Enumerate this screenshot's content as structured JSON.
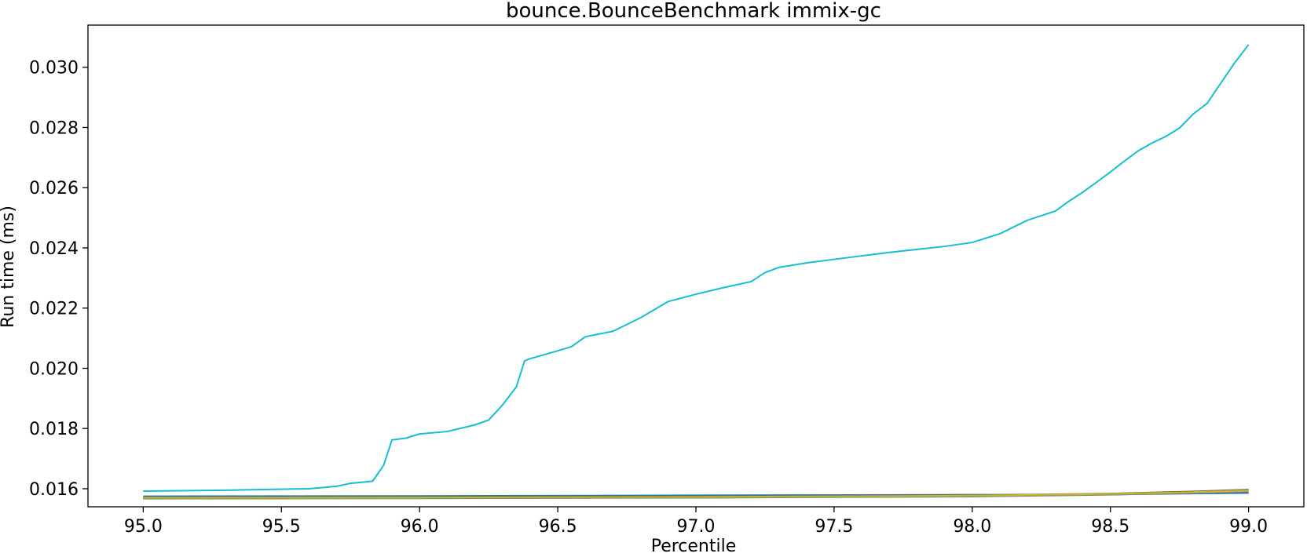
{
  "chart_data": {
    "type": "line",
    "title": "bounce.BounceBenchmark immix-gc",
    "xlabel": "Percentile",
    "ylabel": "Run time (ms)",
    "xlim": [
      94.8,
      99.2
    ],
    "ylim": [
      0.0154,
      0.0314
    ],
    "xticks": [
      95.0,
      95.5,
      96.0,
      96.5,
      97.0,
      97.5,
      98.0,
      98.5,
      99.0
    ],
    "xtick_labels": [
      "95.0",
      "95.5",
      "96.0",
      "96.5",
      "97.0",
      "97.5",
      "98.0",
      "98.5",
      "99.0"
    ],
    "yticks": [
      0.016,
      0.018,
      0.02,
      0.022,
      0.024,
      0.026,
      0.028,
      0.03
    ],
    "ytick_labels": [
      "0.016",
      "0.018",
      "0.020",
      "0.022",
      "0.024",
      "0.026",
      "0.028",
      "0.030"
    ],
    "grid": false,
    "series": [
      {
        "color": "#1f77b4",
        "x": [
          95.0,
          96.0,
          97.0,
          98.0,
          98.5,
          98.8,
          99.0
        ],
        "y": [
          0.01575,
          0.01576,
          0.01578,
          0.0158,
          0.01581,
          0.01584,
          0.01586
        ]
      },
      {
        "color": "#ff7f0e",
        "x": [
          95.0,
          96.0,
          97.0,
          98.0,
          98.5,
          98.8,
          99.0
        ],
        "y": [
          0.01568,
          0.01569,
          0.01571,
          0.01575,
          0.01582,
          0.01588,
          0.01594
        ]
      },
      {
        "color": "#2ca02c",
        "x": [
          95.0,
          96.0,
          97.0,
          98.0,
          98.5,
          98.8,
          99.0
        ],
        "y": [
          0.01567,
          0.01568,
          0.0157,
          0.01574,
          0.0158,
          0.01586,
          0.01591
        ]
      },
      {
        "color": "#d62728",
        "x": [
          95.0,
          96.0,
          97.0,
          98.0,
          98.5,
          98.8,
          99.0
        ],
        "y": [
          0.0157,
          0.01571,
          0.01573,
          0.01577,
          0.01583,
          0.0159,
          0.01596
        ]
      },
      {
        "color": "#9467bd",
        "x": [
          95.0,
          96.0,
          97.0,
          98.0,
          98.5,
          98.8,
          99.0
        ],
        "y": [
          0.01569,
          0.0157,
          0.01572,
          0.01576,
          0.01582,
          0.01588,
          0.01593
        ]
      },
      {
        "color": "#8c564b",
        "x": [
          95.0,
          96.0,
          97.0,
          98.0,
          98.5,
          98.8,
          99.0
        ],
        "y": [
          0.01571,
          0.01572,
          0.01574,
          0.01578,
          0.01584,
          0.01591,
          0.01597
        ]
      },
      {
        "color": "#e377c2",
        "x": [
          95.0,
          96.0,
          97.0,
          98.0,
          98.5,
          98.8,
          99.0
        ],
        "y": [
          0.01568,
          0.01569,
          0.01571,
          0.01575,
          0.01581,
          0.01587,
          0.01592
        ]
      },
      {
        "color": "#7f7f7f",
        "x": [
          95.0,
          96.0,
          97.0,
          98.0,
          98.5,
          98.8,
          99.0
        ],
        "y": [
          0.01569,
          0.0157,
          0.01572,
          0.01576,
          0.01582,
          0.01589,
          0.01595
        ]
      },
      {
        "color": "#bcbd22",
        "x": [
          95.0,
          96.0,
          97.0,
          98.0,
          98.5,
          98.8,
          99.0
        ],
        "y": [
          0.0157,
          0.01571,
          0.01573,
          0.01577,
          0.01583,
          0.01589,
          0.01594
        ]
      },
      {
        "color": "#17becf",
        "x": [
          95.0,
          95.3,
          95.6,
          95.7,
          95.75,
          95.83,
          95.87,
          95.9,
          95.95,
          96.0,
          96.1,
          96.2,
          96.25,
          96.3,
          96.35,
          96.38,
          96.4,
          96.5,
          96.55,
          96.6,
          96.7,
          96.8,
          96.9,
          97.0,
          97.1,
          97.2,
          97.25,
          97.3,
          97.4,
          97.5,
          97.7,
          97.9,
          98.0,
          98.1,
          98.2,
          98.3,
          98.35,
          98.4,
          98.45,
          98.5,
          98.55,
          98.6,
          98.65,
          98.7,
          98.75,
          98.8,
          98.85,
          98.9,
          98.95,
          99.0
        ],
        "y": [
          0.01592,
          0.01595,
          0.016,
          0.01608,
          0.01618,
          0.01625,
          0.01678,
          0.01762,
          0.01768,
          0.01782,
          0.0179,
          0.01812,
          0.01828,
          0.01878,
          0.01938,
          0.02025,
          0.02032,
          0.02058,
          0.02072,
          0.02105,
          0.02123,
          0.02168,
          0.02222,
          0.02246,
          0.02268,
          0.02288,
          0.02318,
          0.02335,
          0.0235,
          0.02362,
          0.02385,
          0.02405,
          0.02418,
          0.02447,
          0.02492,
          0.02522,
          0.02555,
          0.02585,
          0.02618,
          0.02652,
          0.02688,
          0.02722,
          0.02748,
          0.0277,
          0.02798,
          0.02845,
          0.0288,
          0.02948,
          0.03015,
          0.03075
        ]
      }
    ]
  }
}
